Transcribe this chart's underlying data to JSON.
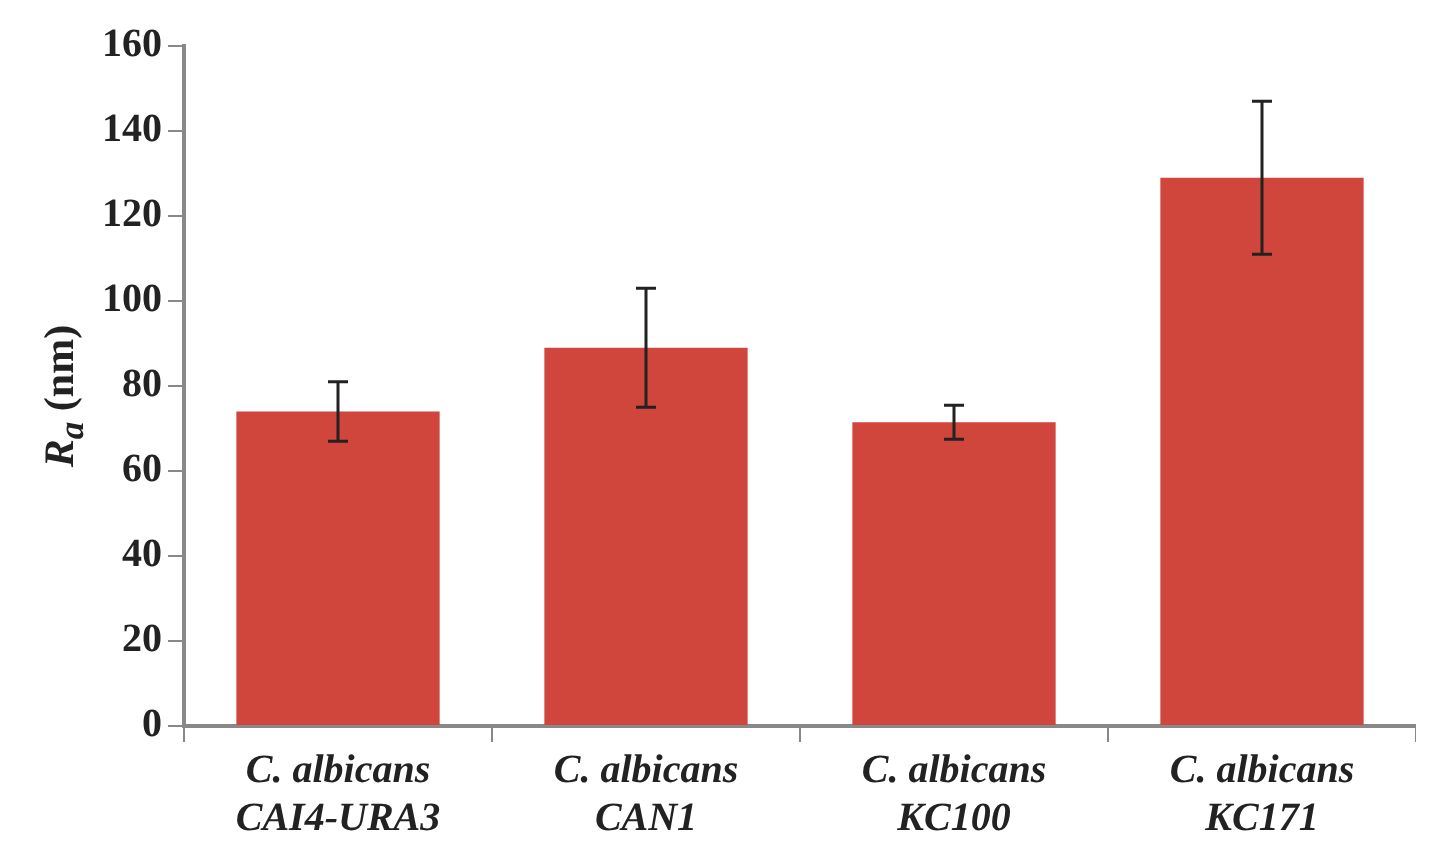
{
  "chart_data": {
    "type": "bar",
    "ylabel": "R$_{a}$ (nm)",
    "categories": [
      "C. albicans\nCAI4-URA3",
      "C. albicans\nCAN1",
      "C. albicans\nKC100",
      "C. albicans\nKC171"
    ],
    "values": [
      74,
      89,
      71.5,
      129
    ],
    "errors": [
      7,
      14,
      4,
      18
    ],
    "color": "#d0453c",
    "ylim": [
      0,
      160
    ],
    "yticks": [
      0,
      20,
      40,
      60,
      80,
      100,
      120,
      140,
      160
    ],
    "grid": false,
    "legend": false
  }
}
